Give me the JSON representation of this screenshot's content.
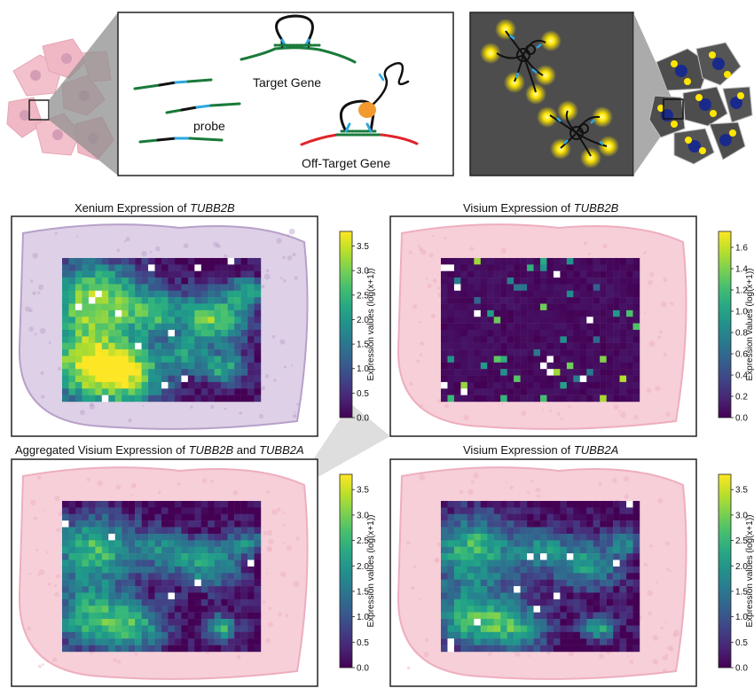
{
  "schematic": {
    "probe_label": "probe",
    "target_label": "Target Gene",
    "offtarget_label": "Off-Target Gene"
  },
  "panels": [
    {
      "title_prefix": "Xenium Expression of ",
      "gene1": "TUBB2B",
      "conj": "",
      "gene2": "",
      "tissue": "he_purple",
      "pattern": "tubb2b",
      "colorbar": {
        "label": "Expression values (log(x+1))",
        "ticks": [
          "0.0",
          "0.5",
          "1.0",
          "1.5",
          "2.0",
          "2.5",
          "3.0",
          "3.5"
        ],
        "max": 3.8
      }
    },
    {
      "title_prefix": "Visium Expression of ",
      "gene1": "TUBB2B",
      "conj": "",
      "gene2": "",
      "tissue": "he_pink",
      "pattern": "sparse",
      "colorbar": {
        "label": "Expression values (log(x+1))",
        "ticks": [
          "0.0",
          "0.2",
          "0.4",
          "0.6",
          "0.8",
          "1.0",
          "1.2",
          "1.4",
          "1.6"
        ],
        "max": 1.75
      }
    },
    {
      "title_prefix": "Aggregated Visium Expression of ",
      "gene1": "TUBB2B",
      "conj": " and ",
      "gene2": "TUBB2A",
      "tissue": "he_pink",
      "pattern": "tubb2a",
      "colorbar": {
        "label": "Expression values (log(x+1))",
        "ticks": [
          "0.0",
          "0.5",
          "1.0",
          "1.5",
          "2.0",
          "2.5",
          "3.0",
          "3.5"
        ],
        "max": 3.8
      }
    },
    {
      "title_prefix": "Visium Expression of ",
      "gene1": "TUBB2A",
      "conj": "",
      "gene2": "",
      "tissue": "he_pink",
      "pattern": "tubb2a",
      "colorbar": {
        "label": "Expression values (log(x+1))",
        "ticks": [
          "0.0",
          "0.5",
          "1.0",
          "1.5",
          "2.0",
          "2.5",
          "3.0",
          "3.5"
        ],
        "max": 3.8
      }
    }
  ],
  "colors": {
    "probe_green": "#1a7a3a",
    "probe_blue": "#2aa8e0",
    "probe_black": "#111111",
    "offtarget_red": "#e0232a",
    "enzyme_orange": "#f29a2e",
    "spot_yellow": "#ffe600",
    "nucleus_blue": "#1a2a8a",
    "dark_panel": "#4d4d4d",
    "cell_pink": "#efb8c4"
  }
}
